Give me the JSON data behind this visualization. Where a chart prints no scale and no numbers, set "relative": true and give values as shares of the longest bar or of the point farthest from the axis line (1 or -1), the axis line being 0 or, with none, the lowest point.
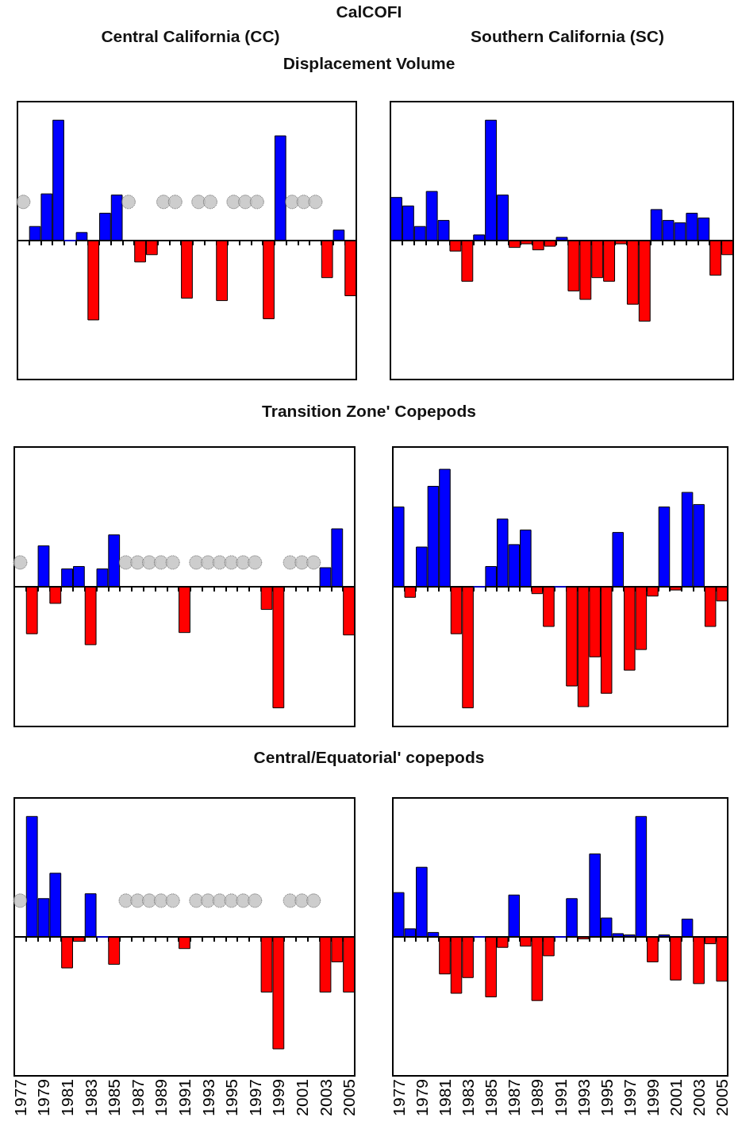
{
  "chart_data": [
    {
      "type": "bar",
      "relative": true,
      "tick_labels": false,
      "title": "CalCOFI",
      "subtitle": "Central California (CC)",
      "annotations": [
        "Displacement Volume"
      ],
      "categories": [
        "1977",
        null,
        "1979",
        null,
        "1981",
        null,
        "1983",
        null,
        "1985",
        null,
        "1987",
        null,
        "1989",
        null,
        "1991",
        null,
        "1993",
        null,
        "1995",
        null,
        "1997",
        null,
        "1999",
        null,
        "2001",
        null,
        "2003",
        null,
        "2005"
      ],
      "series": [
        {
          "values": [
            null,
            0.12,
            0.39,
            1,
            0,
            0.07,
            -0.66,
            0.23,
            0.38,
            null,
            -0.18,
            -0.12,
            null,
            null,
            -0.48,
            null,
            null,
            -0.5,
            null,
            null,
            null,
            -0.65,
            0.87,
            null,
            null,
            null,
            -0.31,
            0.09,
            -0.46
          ],
          "colors": [
            "#0000ff",
            "#0000ff",
            "#0000ff",
            "#0000ff",
            "#0000ff",
            "#0000ff",
            "#ff0000",
            "#0000ff",
            "#0000ff",
            "#0000ff",
            "#ff0000",
            "#ff0000",
            "#0000ff",
            "#0000ff",
            "#ff0000",
            "#0000ff",
            "#0000ff",
            "#ff0000",
            "#0000ff",
            "#0000ff",
            "#0000ff",
            "#ff0000",
            "#0000ff",
            "#0000ff",
            "#0000ff",
            "#0000ff",
            "#ff0000",
            "#0000ff",
            "#ff0000"
          ]
        },
        {
          "type": "scatter",
          "color": "#c0c0c0",
          "marker": "circle",
          "values": [
            0.32,
            null,
            null,
            null,
            null,
            null,
            null,
            null,
            null,
            0.32,
            null,
            null,
            0.32,
            0.32,
            null,
            0.32,
            0.32,
            null,
            0.32,
            0.32,
            0.32,
            null,
            null,
            0.32,
            0.32,
            0.32,
            null,
            null,
            null
          ]
        }
      ]
    },
    {
      "type": "bar",
      "relative": true,
      "tick_labels": false,
      "subtitle": "Southern California (SC)",
      "categories": [
        "1977",
        null,
        "1979",
        null,
        "1981",
        null,
        "1983",
        null,
        "1985",
        null,
        "1987",
        null,
        "1989",
        null,
        "1991",
        null,
        "1993",
        null,
        "1995",
        null,
        "1997",
        null,
        "1999",
        null,
        "2001",
        null,
        "2003",
        null,
        "2005"
      ],
      "series": [
        {
          "values": [
            0.36,
            0.29,
            0.12,
            0.41,
            0.17,
            -0.09,
            -0.34,
            0.05,
            1,
            0.38,
            -0.06,
            -0.03,
            -0.08,
            -0.05,
            0.03,
            -0.42,
            -0.49,
            -0.31,
            -0.34,
            -0.03,
            -0.53,
            -0.67,
            0.26,
            0.17,
            0.15,
            0.23,
            0.19,
            -0.29,
            -0.12
          ],
          "colors": [
            "#0000ff",
            "#0000ff",
            "#0000ff",
            "#0000ff",
            "#0000ff",
            "#ff0000",
            "#ff0000",
            "#0000ff",
            "#0000ff",
            "#0000ff",
            "#ff0000",
            "#ff0000",
            "#ff0000",
            "#ff0000",
            "#0000ff",
            "#ff0000",
            "#ff0000",
            "#ff0000",
            "#ff0000",
            "#ff0000",
            "#ff0000",
            "#ff0000",
            "#0000ff",
            "#0000ff",
            "#0000ff",
            "#0000ff",
            "#0000ff",
            "#ff0000",
            "#ff0000"
          ]
        }
      ]
    },
    {
      "type": "bar",
      "relative": true,
      "tick_labels": false,
      "title": "Transition Zone' Copepods",
      "categories": [
        "1977",
        null,
        "1979",
        null,
        "1981",
        null,
        "1983",
        null,
        "1985",
        null,
        "1987",
        null,
        "1989",
        null,
        "1991",
        null,
        "1993",
        null,
        "1995",
        null,
        "1997",
        null,
        "1999",
        null,
        "2001",
        null,
        "2003",
        null,
        "2005"
      ],
      "series": [
        {
          "values": [
            null,
            -0.39,
            0.34,
            -0.14,
            0.15,
            0.17,
            -0.48,
            0.15,
            0.43,
            null,
            null,
            null,
            null,
            null,
            -0.38,
            null,
            null,
            null,
            null,
            null,
            null,
            -0.19,
            -1,
            null,
            null,
            null,
            0.16,
            0.48,
            -0.4
          ],
          "colors": [
            "#0000ff",
            "#ff0000",
            "#0000ff",
            "#ff0000",
            "#0000ff",
            "#0000ff",
            "#ff0000",
            "#0000ff",
            "#0000ff",
            "#0000ff",
            "#0000ff",
            "#0000ff",
            "#0000ff",
            "#0000ff",
            "#ff0000",
            "#0000ff",
            "#0000ff",
            "#0000ff",
            "#0000ff",
            "#0000ff",
            "#0000ff",
            "#ff0000",
            "#ff0000",
            "#0000ff",
            "#0000ff",
            "#0000ff",
            "#0000ff",
            "#0000ff",
            "#ff0000"
          ]
        },
        {
          "type": "scatter",
          "color": "#c0c0c0",
          "marker": "circle",
          "values": [
            0.2,
            null,
            null,
            null,
            null,
            null,
            null,
            null,
            null,
            0.2,
            0.2,
            0.2,
            0.2,
            0.2,
            null,
            0.2,
            0.2,
            0.2,
            0.2,
            0.2,
            0.2,
            null,
            null,
            0.2,
            0.2,
            0.2,
            null,
            null,
            null
          ]
        }
      ]
    },
    {
      "type": "bar",
      "relative": true,
      "tick_labels": false,
      "categories": [
        "1977",
        null,
        "1979",
        null,
        "1981",
        null,
        "1983",
        null,
        "1985",
        null,
        "1987",
        null,
        "1989",
        null,
        "1991",
        null,
        "1993",
        null,
        "1995",
        null,
        "1997",
        null,
        "1999",
        null,
        "2001",
        null,
        "2003",
        null,
        "2005"
      ],
      "series": [
        {
          "values": [
            0.66,
            -0.09,
            0.33,
            0.83,
            0.97,
            -0.39,
            -1,
            0,
            0.17,
            0.56,
            0.35,
            0.47,
            -0.06,
            -0.33,
            0,
            -0.82,
            -0.99,
            -0.58,
            -0.88,
            0.45,
            -0.69,
            -0.52,
            -0.08,
            0.66,
            -0.03,
            0.78,
            0.68,
            -0.33,
            -0.12
          ],
          "colors": [
            "#0000ff",
            "#ff0000",
            "#0000ff",
            "#0000ff",
            "#0000ff",
            "#ff0000",
            "#ff0000",
            "#0000ff",
            "#0000ff",
            "#0000ff",
            "#0000ff",
            "#0000ff",
            "#ff0000",
            "#ff0000",
            "#0000ff",
            "#ff0000",
            "#ff0000",
            "#ff0000",
            "#ff0000",
            "#0000ff",
            "#ff0000",
            "#ff0000",
            "#ff0000",
            "#0000ff",
            "#ff0000",
            "#0000ff",
            "#0000ff",
            "#ff0000",
            "#ff0000"
          ]
        }
      ]
    },
    {
      "type": "bar",
      "relative": true,
      "tick_labels": "x",
      "title": "Central/Equatorial' copepods",
      "categories": [
        "1977",
        null,
        "1979",
        null,
        "1981",
        null,
        "1983",
        null,
        "1985",
        null,
        "1987",
        null,
        "1989",
        null,
        "1991",
        null,
        "1993",
        null,
        "1995",
        null,
        "1997",
        null,
        "1999",
        null,
        "2001",
        null,
        "2003",
        null,
        "2005"
      ],
      "series": [
        {
          "values": [
            null,
            1,
            0.32,
            0.53,
            -0.26,
            -0.04,
            0.36,
            0,
            -0.23,
            null,
            null,
            null,
            null,
            null,
            -0.1,
            null,
            null,
            null,
            null,
            null,
            null,
            -0.46,
            -0.93,
            null,
            null,
            null,
            -0.46,
            -0.21,
            -0.46
          ],
          "colors": [
            "#0000ff",
            "#0000ff",
            "#0000ff",
            "#0000ff",
            "#ff0000",
            "#ff0000",
            "#0000ff",
            "#0000ff",
            "#ff0000",
            "#0000ff",
            "#0000ff",
            "#0000ff",
            "#0000ff",
            "#0000ff",
            "#ff0000",
            "#0000ff",
            "#0000ff",
            "#0000ff",
            "#0000ff",
            "#0000ff",
            "#0000ff",
            "#ff0000",
            "#ff0000",
            "#0000ff",
            "#0000ff",
            "#0000ff",
            "#ff0000",
            "#ff0000",
            "#ff0000"
          ]
        },
        {
          "type": "scatter",
          "color": "#c0c0c0",
          "marker": "circle",
          "values": [
            0.3,
            null,
            null,
            null,
            null,
            null,
            null,
            null,
            null,
            0.3,
            0.3,
            0.3,
            0.3,
            0.3,
            null,
            0.3,
            0.3,
            0.3,
            0.3,
            0.3,
            0.3,
            null,
            null,
            0.3,
            0.3,
            0.3,
            null,
            null,
            null
          ]
        }
      ]
    },
    {
      "type": "bar",
      "relative": true,
      "tick_labels": "x",
      "categories": [
        "1977",
        null,
        "1979",
        null,
        "1981",
        null,
        "1983",
        null,
        "1985",
        null,
        "1987",
        null,
        "1989",
        null,
        "1991",
        null,
        "1993",
        null,
        "1995",
        null,
        "1997",
        null,
        "1999",
        null,
        "2001",
        null,
        "2003",
        null,
        "2005"
      ],
      "series": [
        {
          "values": [
            0.37,
            0.07,
            0.58,
            0.04,
            -0.31,
            -0.47,
            -0.34,
            0,
            -0.5,
            -0.09,
            0.35,
            -0.08,
            -0.53,
            -0.16,
            0,
            0.32,
            -0.02,
            0.69,
            0.16,
            0.03,
            0.02,
            1,
            -0.21,
            0.02,
            -0.36,
            0.15,
            -0.39,
            -0.06,
            -0.37
          ],
          "colors": [
            "#0000ff",
            "#0000ff",
            "#0000ff",
            "#0000ff",
            "#ff0000",
            "#ff0000",
            "#ff0000",
            "#0000ff",
            "#ff0000",
            "#ff0000",
            "#0000ff",
            "#ff0000",
            "#ff0000",
            "#ff0000",
            "#0000ff",
            "#0000ff",
            "#ff0000",
            "#0000ff",
            "#0000ff",
            "#0000ff",
            "#0000ff",
            "#0000ff",
            "#ff0000",
            "#0000ff",
            "#ff0000",
            "#0000ff",
            "#ff0000",
            "#ff0000",
            "#ff0000"
          ]
        }
      ]
    }
  ]
}
